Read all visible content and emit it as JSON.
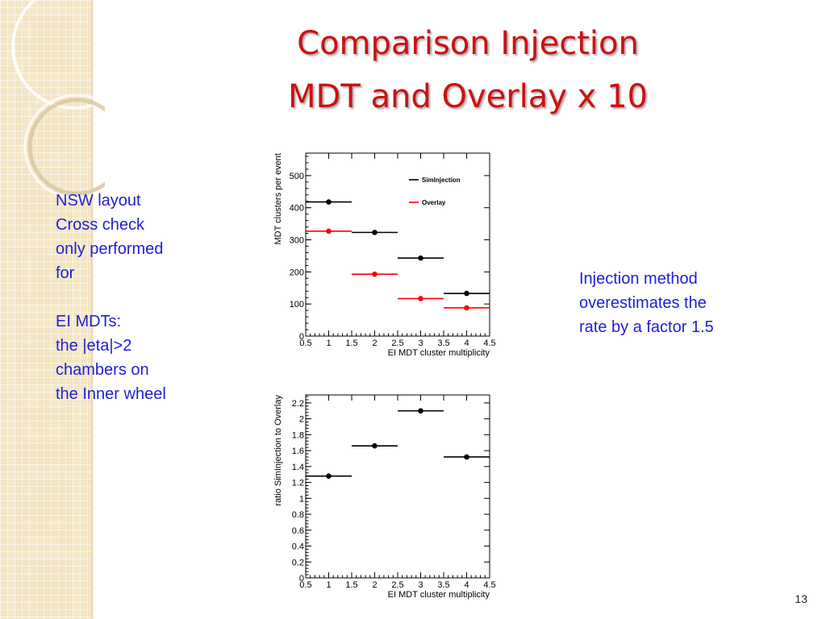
{
  "slide": {
    "title_line1": "Comparison Injection",
    "title_line2": "MDT and Overlay x 10",
    "page_number": "13"
  },
  "left_notes": {
    "lines": [
      "NSW layout",
      "Cross check",
      "only performed",
      "for",
      "",
      "EI MDTs:",
      "the |eta|>2",
      "chambers on",
      "the Inner wheel"
    ]
  },
  "right_note": {
    "lines": [
      "Injection method",
      "overestimates  the",
      "rate by a factor 1.5"
    ]
  },
  "colors": {
    "title": "#cc1111",
    "notes": "#1f1fd6",
    "simInjection": "#000000",
    "overlay": "#ff0000"
  },
  "chart_data": [
    {
      "type": "scatter",
      "xlabel": "EI MDT cluster multiplicity",
      "ylabel": "MDT clusters per event",
      "xlim": [
        0.5,
        4.5
      ],
      "ylim": [
        0,
        570
      ],
      "x_ticks": [
        "0.5",
        "1",
        "1.5",
        "2",
        "2.5",
        "3",
        "3.5",
        "4",
        "4.5"
      ],
      "y_ticks": [
        "0",
        "100",
        "200",
        "300",
        "400",
        "500"
      ],
      "legend_position": "top-right",
      "series": [
        {
          "name": "SimInjection",
          "color": "#000000",
          "bin_width": 1,
          "x": [
            1,
            2,
            3,
            4
          ],
          "y": [
            418,
            323,
            243,
            133
          ]
        },
        {
          "name": "Overlay",
          "color": "#ff0000",
          "bin_width": 1,
          "x": [
            1,
            2,
            3,
            4
          ],
          "y": [
            327,
            193,
            117,
            88
          ]
        }
      ]
    },
    {
      "type": "scatter",
      "xlabel": "EI MDT cluster multiplicity",
      "ylabel": "ratio SimInjection to Overlay",
      "xlim": [
        0.5,
        4.5
      ],
      "ylim": [
        0,
        2.3
      ],
      "x_ticks": [
        "0.5",
        "1",
        "1.5",
        "2",
        "2.5",
        "3",
        "3.5",
        "4",
        "4.5"
      ],
      "y_ticks": [
        "0",
        "0.2",
        "0.4",
        "0.6",
        "0.8",
        "1",
        "1.2",
        "1.4",
        "1.6",
        "1.8",
        "2",
        "2.2"
      ],
      "series": [
        {
          "name": "",
          "color": "#000000",
          "bin_width": 1,
          "x": [
            1,
            2,
            3,
            4
          ],
          "y": [
            1.28,
            1.66,
            2.1,
            1.52
          ]
        }
      ]
    }
  ]
}
